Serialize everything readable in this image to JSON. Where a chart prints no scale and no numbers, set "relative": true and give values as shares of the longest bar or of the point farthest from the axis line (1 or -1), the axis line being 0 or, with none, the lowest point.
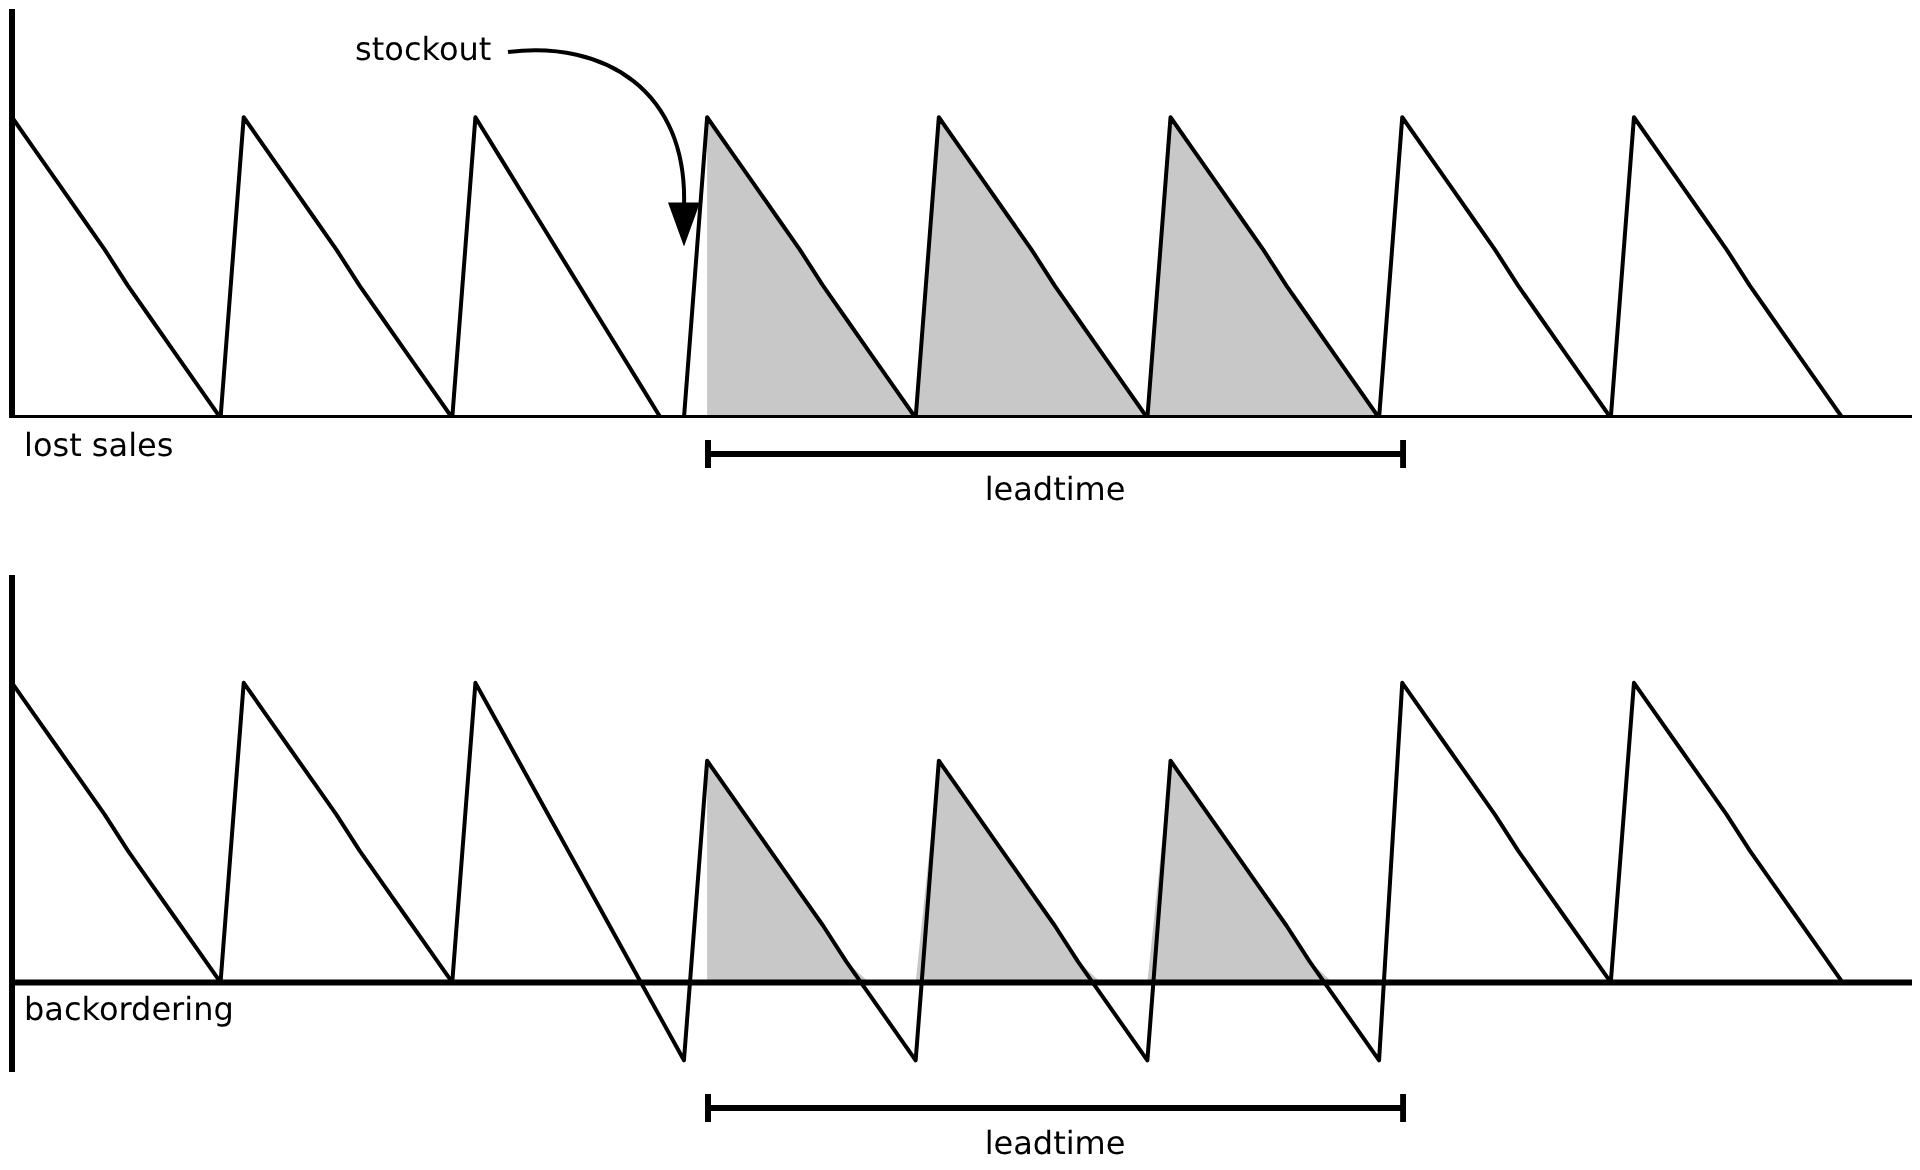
{
  "chart_data": [
    {
      "type": "line",
      "relative": true,
      "legend": false,
      "marker": "none",
      "xlabel": "lost sales",
      "annotations": [
        "stockout",
        "leadtime"
      ],
      "categories": [
        null,
        null,
        null,
        null,
        null,
        null,
        null,
        null,
        null,
        null,
        null,
        null,
        null,
        null,
        null,
        null,
        null,
        null,
        null,
        null,
        null,
        null,
        null,
        null,
        null,
        null,
        null,
        null,
        null,
        null,
        null,
        null,
        null,
        null,
        null,
        null,
        null,
        null,
        null,
        null,
        null,
        null,
        null,
        null,
        null,
        null,
        null,
        null,
        null,
        null,
        null,
        null,
        null,
        null,
        null,
        null,
        null,
        null,
        null,
        null,
        null,
        null,
        null,
        null,
        null,
        null,
        null,
        null,
        null,
        null,
        null,
        null,
        null,
        null,
        null,
        null,
        null,
        null,
        null,
        null,
        null,
        null,
        null
      ],
      "series": [
        {
          "type": "line",
          "color": "#000000",
          "values": [
            1,
            0.89,
            0.78,
            0.67,
            0.56,
            0.44,
            0.33,
            0.22,
            0.11,
            0,
            1,
            0.89,
            0.78,
            0.67,
            0.56,
            0.44,
            0.33,
            0.22,
            0.11,
            0,
            1,
            0.875,
            0.75,
            0.625,
            0.5,
            0.375,
            0.25,
            0.125,
            0,
            0,
            1,
            0.89,
            0.78,
            0.67,
            0.56,
            0.44,
            0.33,
            0.22,
            0.11,
            0,
            1,
            0.89,
            0.78,
            0.67,
            0.56,
            0.44,
            0.33,
            0.22,
            0.11,
            0,
            1,
            0.89,
            0.78,
            0.67,
            0.56,
            0.44,
            0.33,
            0.22,
            0.11,
            0,
            1,
            0.89,
            0.78,
            0.67,
            0.56,
            0.44,
            0.33,
            0.22,
            0.11,
            0,
            1,
            0.89,
            0.78,
            0.67,
            0.56,
            0.44,
            0.33,
            0.22,
            0.11,
            0,
            0,
            0,
            0
          ]
        },
        {
          "type": "area",
          "color": "#c8c8c8",
          "values": [
            null,
            null,
            null,
            null,
            null,
            null,
            null,
            null,
            null,
            null,
            null,
            null,
            null,
            null,
            null,
            null,
            null,
            null,
            null,
            null,
            null,
            null,
            null,
            null,
            null,
            null,
            null,
            null,
            null,
            null,
            1,
            0.89,
            0.78,
            0.67,
            0.56,
            0.44,
            0.33,
            0.22,
            0.11,
            0,
            1,
            0.89,
            0.78,
            0.67,
            0.56,
            0.44,
            0.33,
            0.22,
            0.11,
            0,
            1,
            0.89,
            0.78,
            0.67,
            0.56,
            0.44,
            0.33,
            0.22,
            0.11,
            0,
            null,
            null,
            null,
            null,
            null,
            null,
            null,
            null,
            null,
            null,
            null,
            null,
            null,
            null,
            null,
            null,
            null,
            null,
            null,
            null,
            null,
            null,
            null
          ]
        }
      ]
    },
    {
      "type": "line",
      "relative": true,
      "legend": false,
      "marker": "none",
      "xlabel": "backordering",
      "annotations": [
        "leadtime"
      ],
      "categories": [
        null,
        null,
        null,
        null,
        null,
        null,
        null,
        null,
        null,
        null,
        null,
        null,
        null,
        null,
        null,
        null,
        null,
        null,
        null,
        null,
        null,
        null,
        null,
        null,
        null,
        null,
        null,
        null,
        null,
        null,
        null,
        null,
        null,
        null,
        null,
        null,
        null,
        null,
        null,
        null,
        null,
        null,
        null,
        null,
        null,
        null,
        null,
        null,
        null,
        null,
        null,
        null,
        null,
        null,
        null,
        null,
        null,
        null,
        null,
        null,
        null,
        null,
        null,
        null,
        null,
        null,
        null,
        null,
        null,
        null,
        null,
        null,
        null,
        null,
        null,
        null,
        null,
        null,
        null,
        null,
        null,
        null,
        null
      ],
      "series": [
        {
          "type": "line",
          "color": "#000000",
          "values": [
            1,
            0.89,
            0.78,
            0.67,
            0.56,
            0.44,
            0.33,
            0.22,
            0.11,
            0,
            1,
            0.89,
            0.78,
            0.67,
            0.56,
            0.44,
            0.33,
            0.22,
            0.11,
            0,
            1,
            0.86,
            0.72,
            0.58,
            0.44,
            0.3,
            0.16,
            0.02,
            -0.12,
            -0.26,
            0.74,
            0.63,
            0.52,
            0.41,
            0.3,
            0.19,
            0.07,
            -0.04,
            -0.15,
            -0.26,
            0.74,
            0.63,
            0.52,
            0.41,
            0.3,
            0.19,
            0.07,
            -0.04,
            -0.15,
            -0.26,
            0.74,
            0.63,
            0.52,
            0.41,
            0.3,
            0.19,
            0.07,
            -0.04,
            -0.15,
            -0.26,
            1,
            0.89,
            0.78,
            0.67,
            0.56,
            0.44,
            0.33,
            0.22,
            0.11,
            0,
            1,
            0.89,
            0.78,
            0.67,
            0.56,
            0.44,
            0.33,
            0.22,
            0.11,
            0,
            0,
            0,
            0
          ]
        },
        {
          "type": "area",
          "color": "#c8c8c8",
          "values": [
            null,
            null,
            null,
            null,
            null,
            null,
            null,
            null,
            null,
            null,
            null,
            null,
            null,
            null,
            null,
            null,
            null,
            null,
            null,
            null,
            null,
            null,
            null,
            null,
            null,
            null,
            null,
            null,
            null,
            null,
            0.74,
            0.63,
            0.52,
            0.41,
            0.3,
            0.19,
            0.07,
            0,
            0,
            0,
            0.74,
            0.63,
            0.52,
            0.41,
            0.3,
            0.19,
            0.07,
            0,
            0,
            0,
            0.74,
            0.63,
            0.52,
            0.41,
            0.3,
            0.19,
            0.07,
            0,
            0,
            0,
            null,
            null,
            null,
            null,
            null,
            null,
            null,
            null,
            null,
            null,
            null,
            null,
            null,
            null,
            null,
            null,
            null,
            null,
            null,
            null,
            null,
            null,
            null
          ]
        }
      ]
    }
  ]
}
